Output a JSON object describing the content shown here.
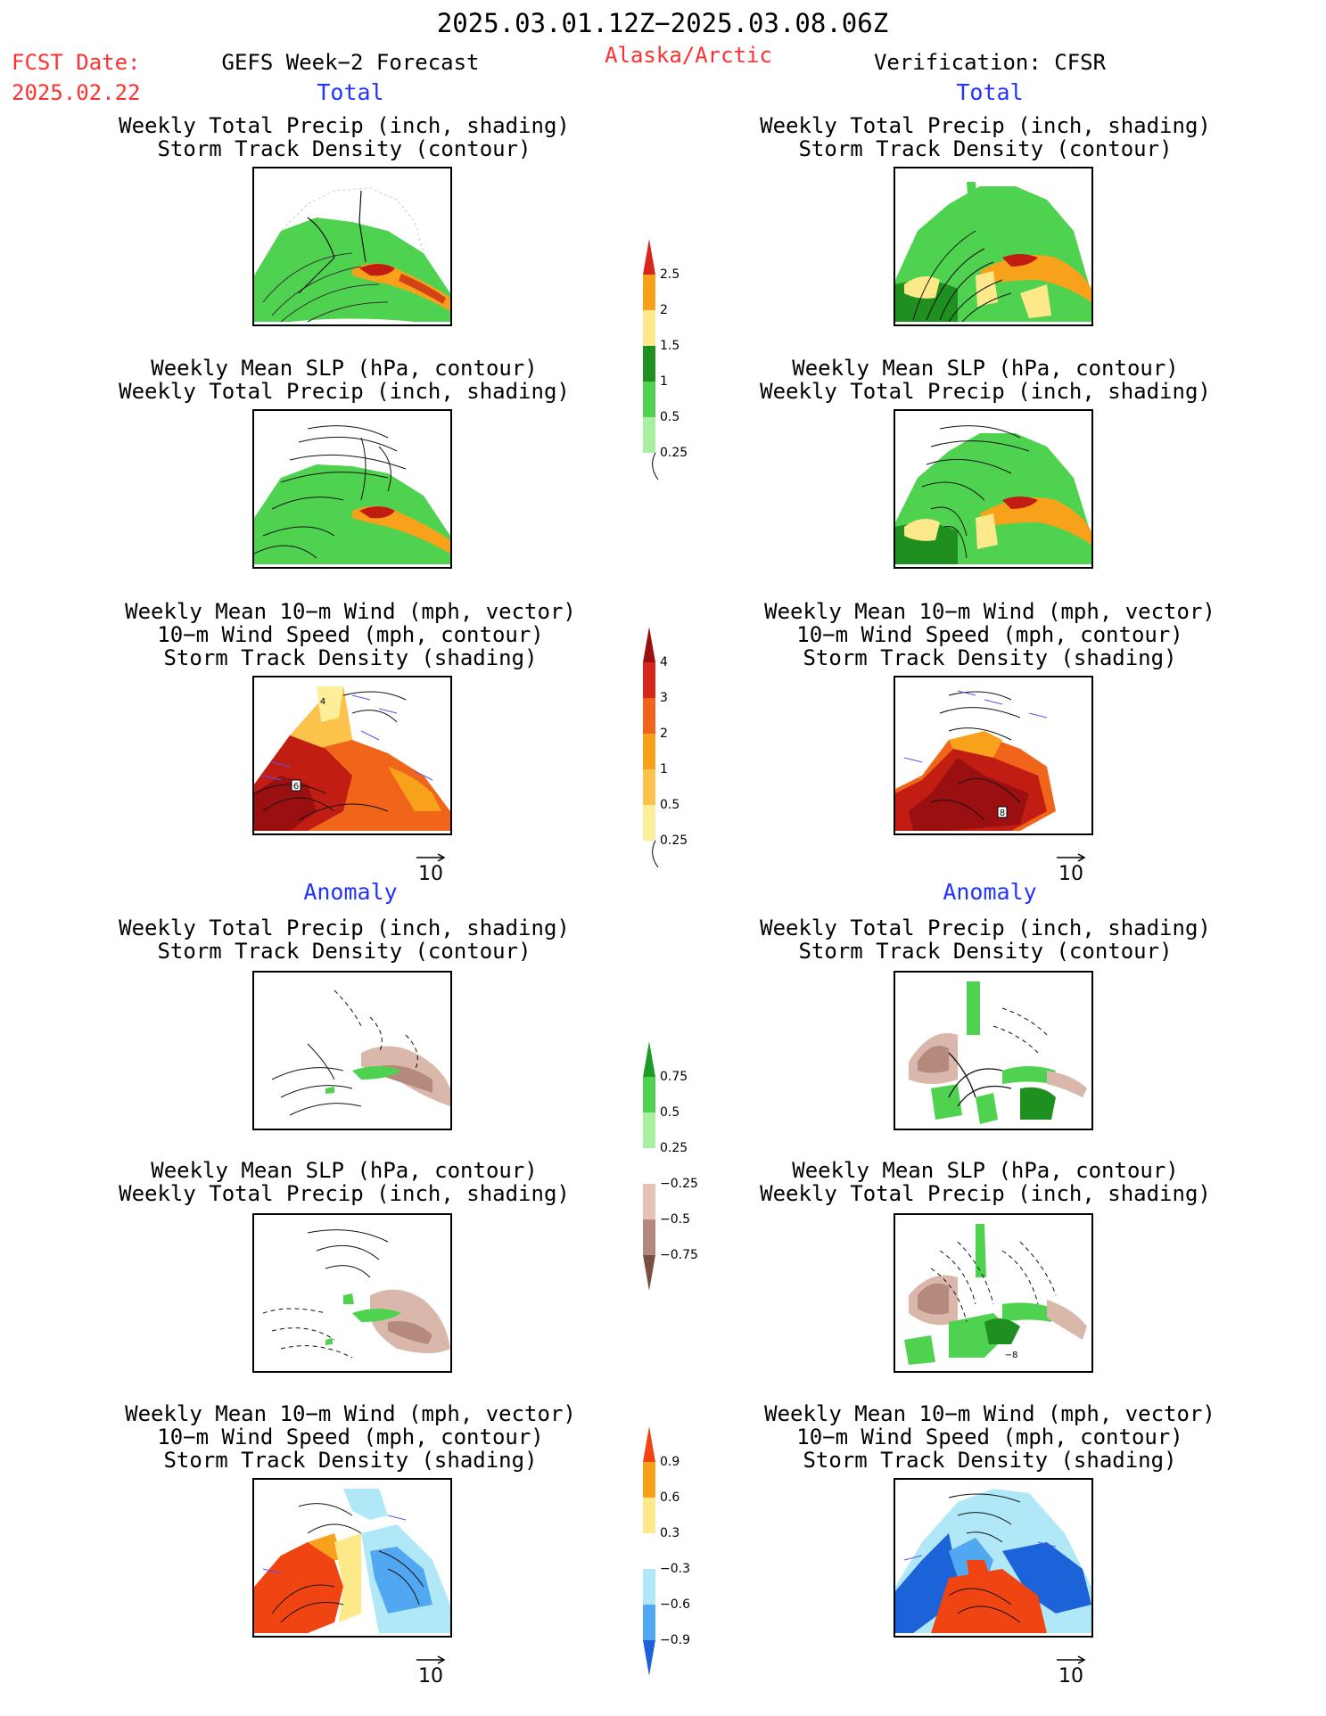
{
  "header": {
    "date_range": "2025.03.01.12Z−2025.03.08.06Z",
    "fcst_label": "FCST Date:",
    "fcst_date": "2025.02.22",
    "product": "GEFS Week−2 Forecast",
    "region": "Alaska/Arctic",
    "verification": "Verification: CFSR"
  },
  "sections": {
    "total": "Total",
    "anomaly": "Anomaly"
  },
  "panel_titles": {
    "precip_storm": [
      "Weekly Total Precip (inch, shading)",
      "Storm Track Density (contour)"
    ],
    "slp_precip": [
      "Weekly Mean SLP (hPa, contour)",
      "Weekly Total Precip (inch, shading)"
    ],
    "wind": [
      "Weekly Mean 10−m Wind (mph, vector)",
      "10−m Wind Speed (mph, contour)",
      "Storm Track Density (shading)"
    ]
  },
  "reference_vector": "10",
  "map_labels": {
    "total_wind_left_box": "6",
    "total_wind_left_contour": "4",
    "total_wind_right_box": "8",
    "anom_slp_right_contour": "−8"
  },
  "colorbars": {
    "precip_total": {
      "labels": [
        "2.5",
        "2",
        "1.5",
        "1",
        "0.5",
        "0.25"
      ],
      "colors": [
        "#d7261b",
        "#f8a21b",
        "#fde88a",
        "#1f8f1f",
        "#4fd24f",
        "#a8f0a0"
      ]
    },
    "storm_total": {
      "labels": [
        "4",
        "3",
        "2",
        "1",
        "0.5",
        "0.25"
      ],
      "colors": [
        "#9a1010",
        "#d7261b",
        "#f0651a",
        "#f8a21b",
        "#fcc24a",
        "#fdee9a"
      ]
    },
    "precip_anom": {
      "labels": [
        "0.75",
        "0.5",
        "0.25",
        "−0.25",
        "−0.5",
        "−0.75"
      ],
      "colors": [
        "#1d9c2c",
        "#4fd24f",
        "#a8f0a0",
        "#ffffff",
        "#e4c4b8",
        "#b58a7c",
        "#7a5040"
      ]
    },
    "storm_anom": {
      "labels": [
        "0.9",
        "0.6",
        "0.3",
        "−0.3",
        "−0.6",
        "−0.9"
      ],
      "colors": [
        "#f04512",
        "#f8a21b",
        "#fde88a",
        "#ffffff",
        "#b0e8f8",
        "#52a8f0",
        "#1c62d8"
      ]
    }
  },
  "colors": {
    "header_red": "#ff3030",
    "section_blue": "#2233ff",
    "precip_green": "#4fd24f",
    "precip_dark_green": "#1f8f1f",
    "storm_red": "#c21d12",
    "anom_brown": "#d9b8ab",
    "anom_blue": "#1c62d8"
  }
}
